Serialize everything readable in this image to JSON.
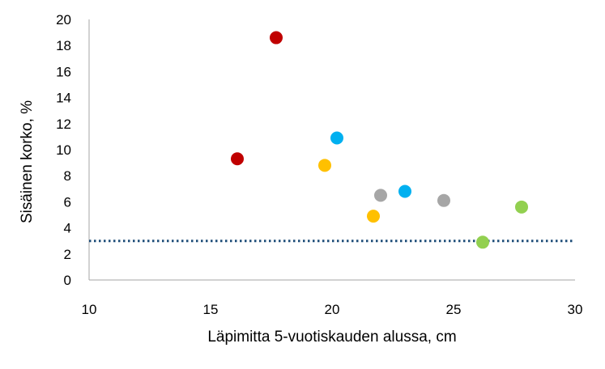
{
  "chart_data": {
    "type": "scatter",
    "title": "",
    "xlabel": "Läpimitta 5-vuotiskauden alussa, cm",
    "ylabel": "Sisäinen korko, %",
    "xlim": [
      10,
      30
    ],
    "ylim": [
      0,
      20
    ],
    "x_ticks": [
      10,
      15,
      20,
      25,
      30
    ],
    "y_ticks": [
      0,
      2,
      4,
      6,
      8,
      10,
      12,
      14,
      16,
      18,
      20
    ],
    "grid": false,
    "legend": "none",
    "reference_line": {
      "y": 3,
      "style": "dotted",
      "color": "#1f4e79"
    },
    "series": [
      {
        "color": "#c00000",
        "points": [
          [
            16.1,
            9.3
          ],
          [
            17.7,
            18.6
          ]
        ]
      },
      {
        "color": "#00b0f0",
        "points": [
          [
            20.2,
            10.9
          ],
          [
            23.0,
            6.8
          ]
        ]
      },
      {
        "color": "#ffc000",
        "points": [
          [
            19.7,
            8.8
          ],
          [
            21.7,
            4.9
          ]
        ]
      },
      {
        "color": "#a6a6a6",
        "points": [
          [
            22.0,
            6.5
          ],
          [
            24.6,
            6.1
          ]
        ]
      },
      {
        "color": "#92d050",
        "points": [
          [
            26.2,
            2.9
          ],
          [
            27.8,
            5.6
          ]
        ]
      }
    ]
  }
}
